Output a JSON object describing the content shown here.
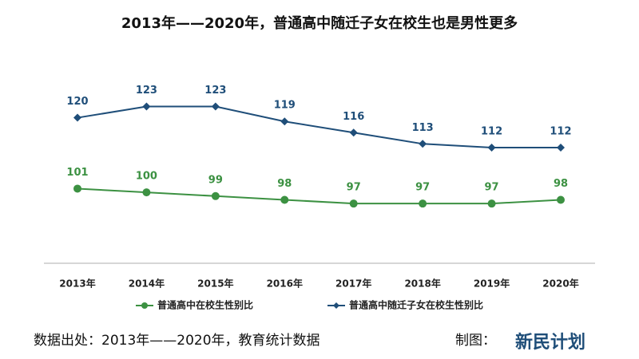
{
  "chart_data": {
    "type": "line",
    "title": "2013年——2020年，普通高中随迁子女在校生也是男性更多",
    "categories": [
      "2013年",
      "2014年",
      "2015年",
      "2016年",
      "2017年",
      "2018年",
      "2019年",
      "2020年"
    ],
    "series": [
      {
        "name": "普通高中在校生性别比",
        "color": "#3c9142",
        "marker": "circle",
        "values": [
          101,
          100,
          99,
          98,
          97,
          97,
          97,
          98
        ]
      },
      {
        "name": "普通高中随迁子女在校生性别比",
        "color": "#1f4e79",
        "marker": "diamond",
        "values": [
          120,
          123,
          123,
          119,
          116,
          113,
          112,
          112
        ]
      }
    ],
    "ylim": [
      81,
      140
    ],
    "grid": false,
    "legend": "bottom"
  },
  "footer": {
    "source": "数据出处：2013年——2020年，教育统计数据",
    "credit": "制图：",
    "logo": "新民计划"
  }
}
